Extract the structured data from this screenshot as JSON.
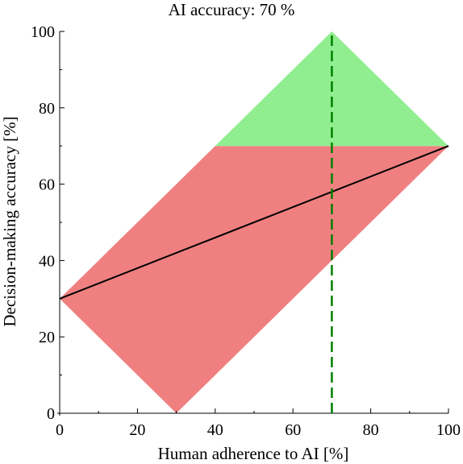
{
  "chart_data": {
    "type": "area",
    "title": "AI accuracy: 70 %",
    "xlabel": "Human adherence to AI [%]",
    "ylabel": "Decision-making accuracy [%]",
    "xlim": [
      0,
      100
    ],
    "ylim": [
      0,
      100
    ],
    "xticks": [
      0,
      20,
      40,
      60,
      80,
      100
    ],
    "yticks": [
      0,
      20,
      40,
      60,
      80,
      100
    ],
    "x_minor_step": 10,
    "y_minor_step": 10,
    "grid": false,
    "regions": [
      {
        "color": "#f08080",
        "polygon": [
          [
            0,
            30
          ],
          [
            30,
            0
          ],
          [
            100,
            70
          ],
          [
            40,
            70
          ]
        ]
      },
      {
        "color": "#90ee90",
        "polygon": [
          [
            40,
            70
          ],
          [
            70,
            100
          ],
          [
            100,
            70
          ]
        ]
      }
    ],
    "series": [
      {
        "style": "solid",
        "color": "#000000",
        "x": [
          0,
          100
        ],
        "y": [
          30,
          70
        ]
      },
      {
        "style": "dashed",
        "color": "#008000",
        "x": [
          70,
          70
        ],
        "y": [
          0,
          100
        ]
      }
    ]
  }
}
